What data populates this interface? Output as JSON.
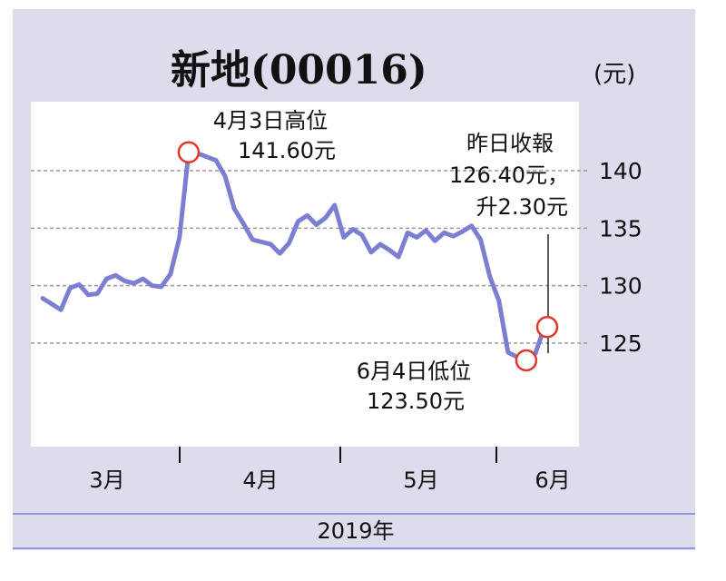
{
  "title": "新地(00016)",
  "unit": "(元)",
  "footer_year": "2019年",
  "colors": {
    "frame_bg": "#dcdcec",
    "plot_bg": "#ffffff",
    "line": "#7b7fd1",
    "marker_stroke": "#e2382b",
    "grid": "#9a9a9a",
    "axis_line": "#111111",
    "footer_rule": "#7b7fd1"
  },
  "annotations": {
    "high_label_line1": "4月3日高位",
    "high_label_line2": "141.60元",
    "low_label_line1": "6月4日低位",
    "low_label_line2": "123.50元",
    "close_label_line1": "昨日收報",
    "close_label_line2": "126.40元，",
    "close_label_line3": "升2.30元"
  },
  "chart_data": {
    "type": "line",
    "title": "新地(00016)",
    "xlabel": "2019年",
    "ylabel": "",
    "ylim": [
      116,
      146
    ],
    "yticks": [
      125,
      130,
      135,
      140
    ],
    "x_month_labels": [
      "3月",
      "4月",
      "5月",
      "6月"
    ],
    "grid": true,
    "series": [
      {
        "values": [
          128.9,
          128.4,
          127.9,
          129.8,
          130.1,
          129.2,
          129.3,
          130.6,
          130.9,
          130.4,
          130.2,
          130.6,
          130.0,
          129.9,
          131.0,
          134.2,
          141.6,
          141.5,
          141.2,
          140.9,
          139.5,
          136.7,
          135.4,
          134.0,
          133.8,
          133.6,
          132.8,
          133.7,
          135.6,
          136.1,
          135.3,
          135.9,
          137.0,
          134.2,
          134.9,
          134.4,
          132.9,
          133.6,
          133.1,
          132.5,
          134.6,
          134.2,
          134.8,
          133.9,
          134.6,
          134.3,
          134.7,
          135.2,
          134.0,
          130.8,
          128.7,
          124.2,
          123.8,
          123.5,
          124.1,
          126.4
        ]
      }
    ],
    "annotated_points": [
      {
        "date": "4月3日",
        "value": 141.6,
        "label": "高位"
      },
      {
        "date": "6月4日",
        "value": 123.5,
        "label": "低位"
      },
      {
        "label": "昨日收報",
        "value": 126.4,
        "change": 2.3
      }
    ]
  }
}
